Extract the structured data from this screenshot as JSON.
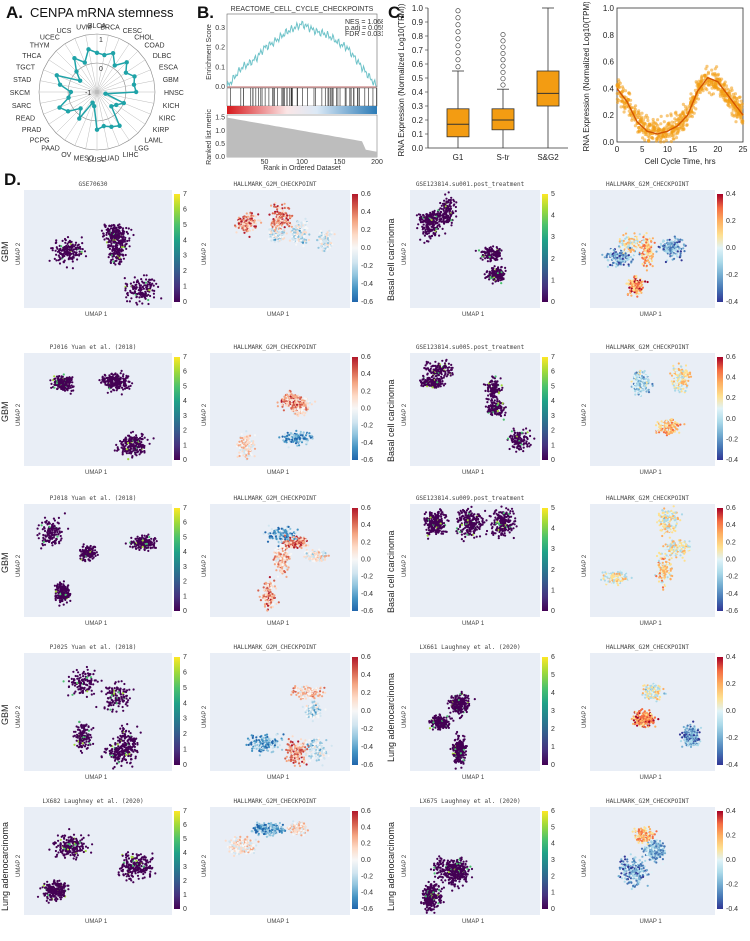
{
  "panelA": {
    "label": "A.",
    "title": "CENPA mRNA stemness",
    "ring_labels": [
      "1",
      "0",
      "-1"
    ],
    "chart_data": {
      "type": "radar",
      "categories": [
        "BLCA",
        "BRCA",
        "CESC",
        "CHOL",
        "COAD",
        "DLBC",
        "ESCA",
        "GBM",
        "HNSC",
        "KICH",
        "KIRC",
        "KIRP",
        "LAML",
        "LGG",
        "LIHC",
        "LUAD",
        "LUSC",
        "MESO",
        "OV",
        "PAAD",
        "PCPG",
        "PRAD",
        "READ",
        "SARC",
        "SKCM",
        "STAD",
        "TGCT",
        "THCA",
        "THYM",
        "UCEC",
        "UCS",
        "UVM"
      ],
      "values": [
        0.35,
        0.3,
        0.45,
        0.1,
        0.45,
        0.2,
        0.4,
        0.3,
        0.35,
        -0.7,
        0.0,
        -0.2,
        -0.3,
        0.4,
        0.3,
        0.2,
        0.3,
        -0.5,
        -0.6,
        0.1,
        -0.2,
        0.2,
        0.4,
        0.0,
        -0.1,
        0.3,
        0.5,
        -0.3,
        0.0,
        0.4,
        0.1,
        0.5
      ],
      "rlim": [
        -1,
        1
      ]
    }
  },
  "panelB": {
    "label": "B.",
    "title": "REACTOME_CELL_CYCLE_CHECKPOINTS",
    "stats": [
      "NES = 1.068",
      "p.adj = 0.055",
      "FDR = 0.031"
    ],
    "top_ylabel": "Enrichment Score",
    "bottom_ylabel": "Ranked list metric",
    "xlabel": "Rank in Ordered Dataset",
    "chart_data": {
      "type": "line",
      "x": [
        0,
        10,
        20,
        30,
        40,
        50,
        60,
        70,
        80,
        90,
        100,
        110,
        120,
        130,
        140,
        150,
        160,
        170,
        180,
        190,
        200
      ],
      "values": [
        0.0,
        0.05,
        0.1,
        0.12,
        0.15,
        0.2,
        0.22,
        0.25,
        0.28,
        0.3,
        0.32,
        0.3,
        0.28,
        0.27,
        0.25,
        0.22,
        0.2,
        0.15,
        0.1,
        0.05,
        0.0
      ],
      "yticks": [
        "0.3",
        "0.2",
        "0.1",
        "0.0"
      ],
      "xticks": [
        "50",
        "100",
        "150",
        "200"
      ],
      "bottom_yticks": [
        "1.5",
        "1.0",
        "0.5",
        "0.0"
      ]
    }
  },
  "panelC": {
    "label": "C.",
    "box_ylabel": "RNA Expression (Normalized Log10(TPM))",
    "scatter_ylabel": "RNA Expression (Normalized Log10(TPM))",
    "scatter_xlabel": "Cell Cycle Time, hrs",
    "chart_data": [
      {
        "type": "box",
        "categories": [
          "G1",
          "S-tr",
          "S&G2"
        ],
        "medians": [
          0.17,
          0.2,
          0.39
        ],
        "q1": [
          0.08,
          0.13,
          0.3
        ],
        "q3": [
          0.28,
          0.28,
          0.55
        ],
        "whisker_low": [
          0.0,
          0.0,
          0.0
        ],
        "whisker_high": [
          0.55,
          0.42,
          1.0
        ],
        "ylim": [
          0,
          1
        ],
        "yticks": [
          "0.0",
          "0.1",
          "0.2",
          "0.3",
          "0.4",
          "0.5",
          "0.6",
          "0.7",
          "0.8",
          "0.9",
          "1.0"
        ]
      },
      {
        "type": "scatter",
        "x": [
          0,
          2,
          4,
          6,
          8,
          10,
          12,
          14,
          16,
          18,
          20,
          22,
          24,
          25
        ],
        "values": [
          0.4,
          0.3,
          0.15,
          0.08,
          0.06,
          0.08,
          0.12,
          0.2,
          0.38,
          0.48,
          0.45,
          0.35,
          0.25,
          0.2
        ],
        "xlim": [
          0,
          25
        ],
        "ylim": [
          0,
          1
        ],
        "xticks": [
          "0",
          "5",
          "10",
          "15",
          "20",
          "25"
        ],
        "yticks": [
          "0.0",
          "0.2",
          "0.4",
          "0.6",
          "0.8",
          "1.0"
        ]
      }
    ]
  },
  "panelD": {
    "label": "D.",
    "umap_x": "UMAP 1",
    "umap_y": "UMAP 2",
    "rows": [
      {
        "left": {
          "row_label": "GBM",
          "title1": "GSE70630",
          "title2": "HALLMARK_G2M_CHECKPOINT",
          "cb1": [
            "7",
            "6",
            "5",
            "4",
            "3",
            "2",
            "1",
            "0"
          ],
          "cb2": [
            "0.6",
            "0.4",
            "0.2",
            "0.0",
            "-0.2",
            "-0.4",
            "-0.6"
          ]
        },
        "right": {
          "row_label": "Basal cell carcinoma",
          "title1": "GSE123814.su001.post_treatment",
          "title2": "HALLMARK_G2M_CHECKPOINT",
          "cb1": [
            "5",
            "4",
            "3",
            "2",
            "1",
            "0"
          ],
          "cb2": [
            "0.4",
            "0.2",
            "0.0",
            "-0.2",
            "-0.4"
          ]
        }
      },
      {
        "left": {
          "row_label": "GBM",
          "title1": "PJ016   Yuan et al. (2018)",
          "title2": "HALLMARK_G2M_CHECKPOINT",
          "cb1": [
            "7",
            "6",
            "5",
            "4",
            "3",
            "2",
            "1",
            "0"
          ],
          "cb2": [
            "0.6",
            "0.4",
            "0.2",
            "0.0",
            "-0.2",
            "-0.4",
            "-0.6"
          ]
        },
        "right": {
          "row_label": "Basal cell carcinoma",
          "title1": "GSE123814.su005.post_treatment",
          "title2": "HALLMARK_G2M_CHECKPOINT",
          "cb1": [
            "7",
            "6",
            "5",
            "4",
            "3",
            "2",
            "1",
            "0"
          ],
          "cb2": [
            "0.6",
            "0.4",
            "0.2",
            "0.0",
            "-0.2",
            "-0.4"
          ]
        }
      },
      {
        "left": {
          "row_label": "GBM",
          "title1": "PJ018   Yuan et al. (2018)",
          "title2": "HALLMARK_G2M_CHECKPOINT",
          "cb1": [
            "7",
            "6",
            "5",
            "4",
            "3",
            "2",
            "1",
            "0"
          ],
          "cb2": [
            "0.6",
            "0.4",
            "0.2",
            "0.0",
            "-0.2",
            "-0.4",
            "-0.6"
          ]
        },
        "right": {
          "row_label": "Basal cell carcinoma",
          "title1": "GSE123814.su009.post_treatment",
          "title2": "HALLMARK_G2M_CHECKPOINT",
          "cb1": [
            "5",
            "4",
            "3",
            "2",
            "1",
            "0"
          ],
          "cb2": [
            "0.6",
            "0.4",
            "0.2",
            "0.0",
            "-0.2",
            "-0.4",
            "-0.6"
          ]
        }
      },
      {
        "left": {
          "row_label": "GBM",
          "title1": "PJ025   Yuan et al. (2018)",
          "title2": "HALLMARK_G2M_CHECKPOINT",
          "cb1": [
            "7",
            "6",
            "5",
            "4",
            "3",
            "2",
            "1",
            "0"
          ],
          "cb2": [
            "0.6",
            "0.4",
            "0.2",
            "0.0",
            "-0.2",
            "-0.4",
            "-0.6"
          ]
        },
        "right": {
          "row_label": "Lung adenocarcinoma",
          "title1": "LX661   Laughney et al. (2020)",
          "title2": "HALLMARK_G2M_CHECKPOINT",
          "cb1": [
            "6",
            "5",
            "4",
            "3",
            "2",
            "1",
            "0"
          ],
          "cb2": [
            "0.4",
            "0.2",
            "0.0",
            "-0.2",
            "-0.4"
          ]
        }
      },
      {
        "left": {
          "row_label": "Lung adenocarcinoma",
          "title1": "LX682   Laughney et al. (2020)",
          "title2": "HALLMARK_G2M_CHECKPOINT",
          "cb1": [
            "7",
            "6",
            "5",
            "4",
            "3",
            "2",
            "1",
            "0"
          ],
          "cb2": [
            "0.6",
            "0.4",
            "0.2",
            "0.0",
            "-0.2",
            "-0.4",
            "-0.6"
          ]
        },
        "right": {
          "row_label": "Lung adenocarcinoma",
          "title1": "LX675   Laughney et al. (2020)",
          "title2": "HALLMARK_G2M_CHECKPOINT",
          "cb1": [
            "6",
            "5",
            "4",
            "3",
            "2",
            "1",
            "0"
          ],
          "cb2": [
            "0.4",
            "0.2",
            "0.0",
            "-0.2",
            "-0.4"
          ]
        }
      }
    ]
  },
  "colors": {
    "teal": "#1fa3a8",
    "orange": "#f39c12",
    "umap_bg": "#e9eef6"
  }
}
